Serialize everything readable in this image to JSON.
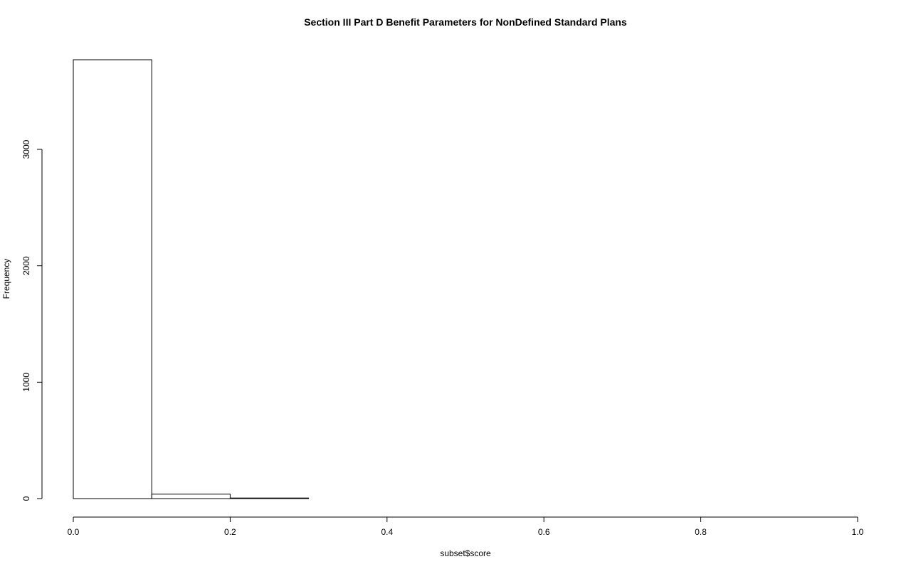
{
  "chart_data": {
    "type": "bar",
    "title": "Section III Part D Benefit Parameters for NonDefined Standard Plans",
    "xlabel": "subset$score",
    "ylabel": "Frequency",
    "bins": [
      {
        "x0": 0.0,
        "x1": 0.1,
        "count": 3770
      },
      {
        "x0": 0.1,
        "x1": 0.2,
        "count": 38
      },
      {
        "x0": 0.2,
        "x1": 0.3,
        "count": 5
      },
      {
        "x0": 0.3,
        "x1": 0.4,
        "count": 0
      },
      {
        "x0": 0.4,
        "x1": 0.5,
        "count": 0
      },
      {
        "x0": 0.5,
        "x1": 0.6,
        "count": 0
      },
      {
        "x0": 0.6,
        "x1": 0.7,
        "count": 0
      },
      {
        "x0": 0.7,
        "x1": 0.8,
        "count": 0
      },
      {
        "x0": 0.8,
        "x1": 0.9,
        "count": 0
      },
      {
        "x0": 0.9,
        "x1": 1.0,
        "count": 0
      }
    ],
    "xlim": [
      0,
      1
    ],
    "ylim": [
      0,
      3770
    ],
    "x_ticks": [
      0.0,
      0.2,
      0.4,
      0.6,
      0.8,
      1.0
    ],
    "x_tick_labels": [
      "0.0",
      "0.2",
      "0.4",
      "0.6",
      "0.8",
      "1.0"
    ],
    "y_ticks": [
      0,
      1000,
      2000,
      3000
    ],
    "y_tick_labels": [
      "0",
      "1000",
      "2000",
      "3000"
    ],
    "grid": false,
    "legend": "none"
  }
}
